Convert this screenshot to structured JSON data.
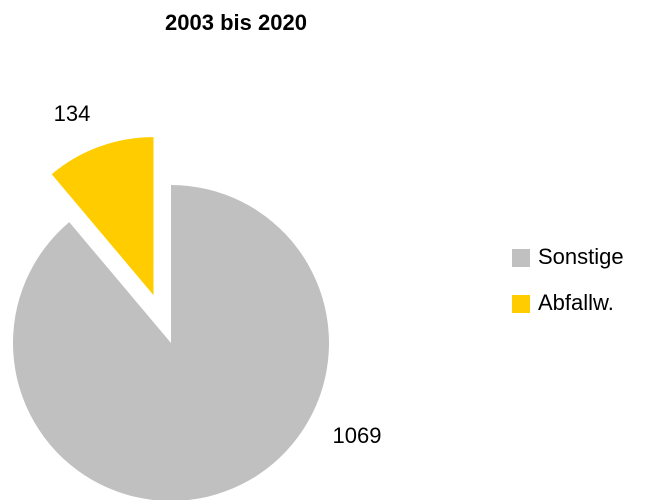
{
  "chart_data": {
    "type": "pie",
    "title": "2003 bis 2020",
    "categories": [
      "Sonstige",
      "Abfallw."
    ],
    "values": [
      1069,
      134
    ],
    "colors": [
      "#c0c0c0",
      "#ffcc00"
    ],
    "legend": "right"
  }
}
